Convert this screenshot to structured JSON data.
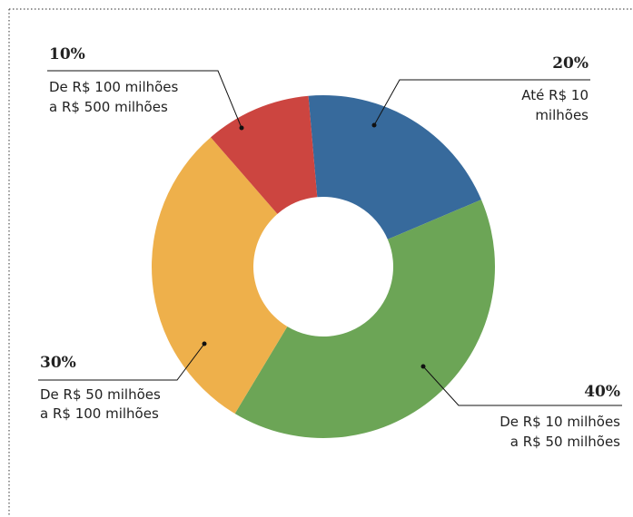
{
  "chart_data": {
    "type": "donut",
    "categories": [
      [
        "Até R$ 10",
        "milhões"
      ],
      [
        "De R$ 10 milhões",
        "a R$ 50 milhões"
      ],
      [
        "De R$ 50 milhões",
        "a R$ 100 milhões"
      ],
      [
        "De R$ 100 milhões",
        "a R$ 500 milhões"
      ]
    ],
    "values": [
      20,
      40,
      30,
      10
    ],
    "value_labels": [
      "20%",
      "40%",
      "30%",
      "10%"
    ],
    "colors": [
      "#376a9c",
      "#6ca556",
      "#eeb04b",
      "#cc4540"
    ]
  }
}
